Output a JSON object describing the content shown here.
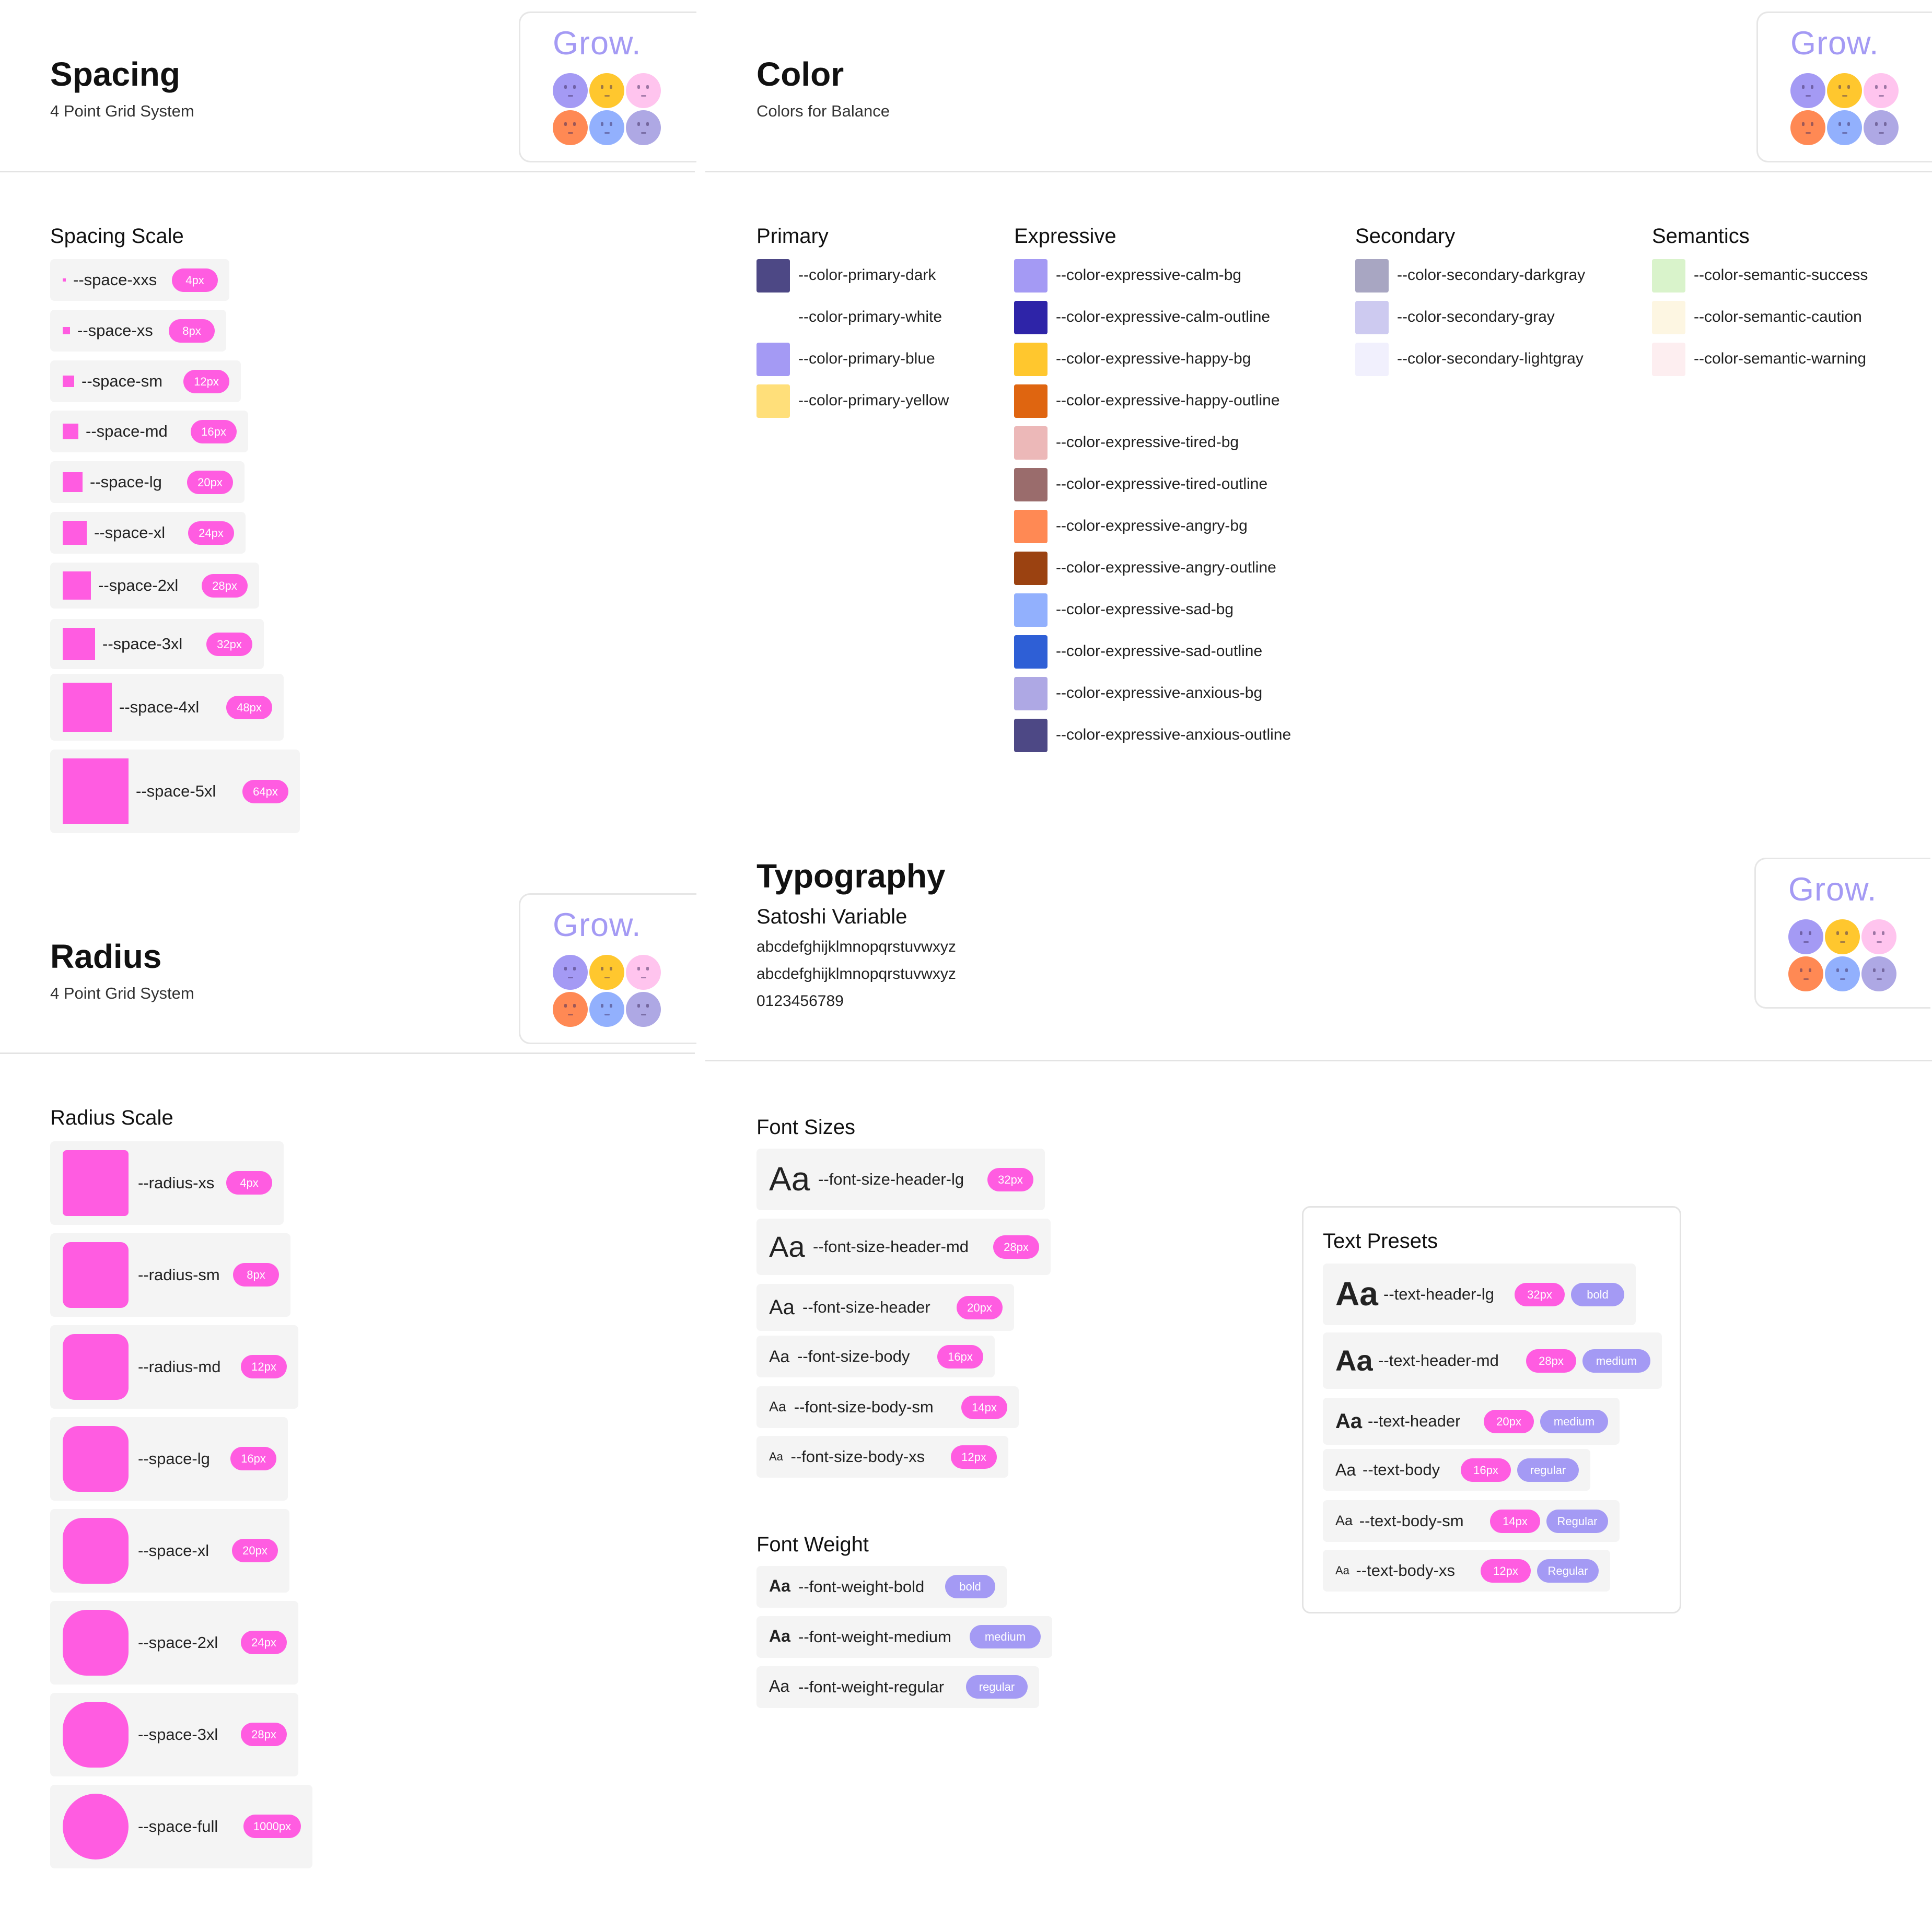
{
  "brand": {
    "logo_text": "Grow."
  },
  "spacing": {
    "title": "Spacing",
    "subtitle": "4 Point Grid System",
    "scale_title": "Spacing Scale",
    "items": [
      {
        "name": "--space-xxs",
        "value": "4px"
      },
      {
        "name": "--space-xs",
        "value": "8px"
      },
      {
        "name": "--space-sm",
        "value": "12px"
      },
      {
        "name": "--space-md",
        "value": "16px"
      },
      {
        "name": "--space-lg",
        "value": "20px"
      },
      {
        "name": "--space-xl",
        "value": "24px"
      },
      {
        "name": "--space-2xl",
        "value": "28px"
      },
      {
        "name": "--space-3xl",
        "value": "32px"
      },
      {
        "name": "--space-4xl",
        "value": "48px"
      },
      {
        "name": "--space-5xl",
        "value": "64px"
      }
    ]
  },
  "radius": {
    "title": "Radius",
    "subtitle": "4 Point Grid System",
    "scale_title": "Radius Scale",
    "items": [
      {
        "name": "--radius-xs",
        "value": "4px"
      },
      {
        "name": "--radius-sm",
        "value": "8px"
      },
      {
        "name": "--radius-md",
        "value": "12px"
      },
      {
        "name": "--space-lg",
        "value": "16px"
      },
      {
        "name": "--space-xl",
        "value": "20px"
      },
      {
        "name": "--space-2xl",
        "value": "24px"
      },
      {
        "name": "--space-3xl",
        "value": "28px"
      },
      {
        "name": "--space-full",
        "value": "1000px"
      }
    ]
  },
  "color": {
    "title": "Color",
    "subtitle": "Colors for Balance",
    "groups": [
      {
        "title": "Primary",
        "items": [
          {
            "name": "--color-primary-dark",
            "hex": "#4d4885"
          },
          {
            "name": "--color-primary-white",
            "hex": "#ffffff"
          },
          {
            "name": "--color-primary-blue",
            "hex": "#a49af4"
          },
          {
            "name": "--color-primary-yellow",
            "hex": "#ffdf7a"
          }
        ]
      },
      {
        "title": "Expressive",
        "items": [
          {
            "name": "--color-expressive-calm-bg",
            "hex": "#a49af4"
          },
          {
            "name": "--color-expressive-calm-outline",
            "hex": "#2e24a8"
          },
          {
            "name": "--color-expressive-happy-bg",
            "hex": "#ffc72e"
          },
          {
            "name": "--color-expressive-happy-outline",
            "hex": "#df6510"
          },
          {
            "name": "--color-expressive-tired-bg",
            "hex": "#ecb8b8"
          },
          {
            "name": "--color-expressive-tired-outline",
            "hex": "#9a6c6c"
          },
          {
            "name": "--color-expressive-angry-bg",
            "hex": "#ff8954"
          },
          {
            "name": "--color-expressive-angry-outline",
            "hex": "#9b4211"
          },
          {
            "name": "--color-expressive-sad-bg",
            "hex": "#92b0fd"
          },
          {
            "name": "--color-expressive-sad-outline",
            "hex": "#2e5fd6"
          },
          {
            "name": "--color-expressive-anxious-bg",
            "hex": "#aea8e4"
          },
          {
            "name": "--color-expressive-anxious-outline",
            "hex": "#4d4885"
          }
        ]
      },
      {
        "title": "Secondary",
        "items": [
          {
            "name": "--color-secondary-darkgray",
            "hex": "#a8a6c2"
          },
          {
            "name": "--color-secondary-gray",
            "hex": "#cdcaf0"
          },
          {
            "name": "--color-secondary-lightgray",
            "hex": "#f1f0fd"
          }
        ]
      },
      {
        "title": "Semantics",
        "items": [
          {
            "name": "--color-semantic-success",
            "hex": "#d9f3cb"
          },
          {
            "name": "--color-semantic-caution",
            "hex": "#fdf6e2"
          },
          {
            "name": "--color-semantic-warning",
            "hex": "#fdeef0"
          }
        ]
      }
    ]
  },
  "typography": {
    "title": "Typography",
    "font_name": "Satoshi Variable",
    "sample_lines": [
      "abcdefghijklmnopqrstuvwxyz",
      "abcdefghijklmnopqrstuvwxyz",
      "0123456789"
    ],
    "aa": "Aa",
    "font_sizes_title": "Font Sizes",
    "font_sizes": [
      {
        "name": "--font-size-header-lg",
        "value": "32px"
      },
      {
        "name": "--font-size-header-md",
        "value": "28px"
      },
      {
        "name": "--font-size-header",
        "value": "20px"
      },
      {
        "name": "--font-size-body",
        "value": "16px"
      },
      {
        "name": "--font-size-body-sm",
        "value": "14px"
      },
      {
        "name": "--font-size-body-xs",
        "value": "12px"
      }
    ],
    "font_weight_title": "Font Weight",
    "font_weights": [
      {
        "name": "--font-weight-bold",
        "value": "bold"
      },
      {
        "name": "--font-weight-medium",
        "value": "medium"
      },
      {
        "name": "--font-weight-regular",
        "value": "regular"
      }
    ],
    "presets_title": "Text Presets",
    "presets": [
      {
        "name": "--text-header-lg",
        "size": "32px",
        "weight": "bold"
      },
      {
        "name": "--text-header-md",
        "size": "28px",
        "weight": "medium"
      },
      {
        "name": "--text-header",
        "size": "20px",
        "weight": "medium"
      },
      {
        "name": "--text-body",
        "size": "16px",
        "weight": "regular"
      },
      {
        "name": "--text-body-sm",
        "size": "14px",
        "weight": "Regular"
      },
      {
        "name": "--text-body-xs",
        "size": "12px",
        "weight": "Regular"
      }
    ]
  },
  "colors": {
    "accent_pink": "#ff5ce1",
    "accent_purple": "#a49af4",
    "chip_bg": "#f4f4f4",
    "divider": "#e3e3e3",
    "faces": [
      "#a49af4",
      "#ffc72e",
      "#ffc4ee",
      "#ff8954",
      "#92b0fd",
      "#aea8e4"
    ]
  }
}
